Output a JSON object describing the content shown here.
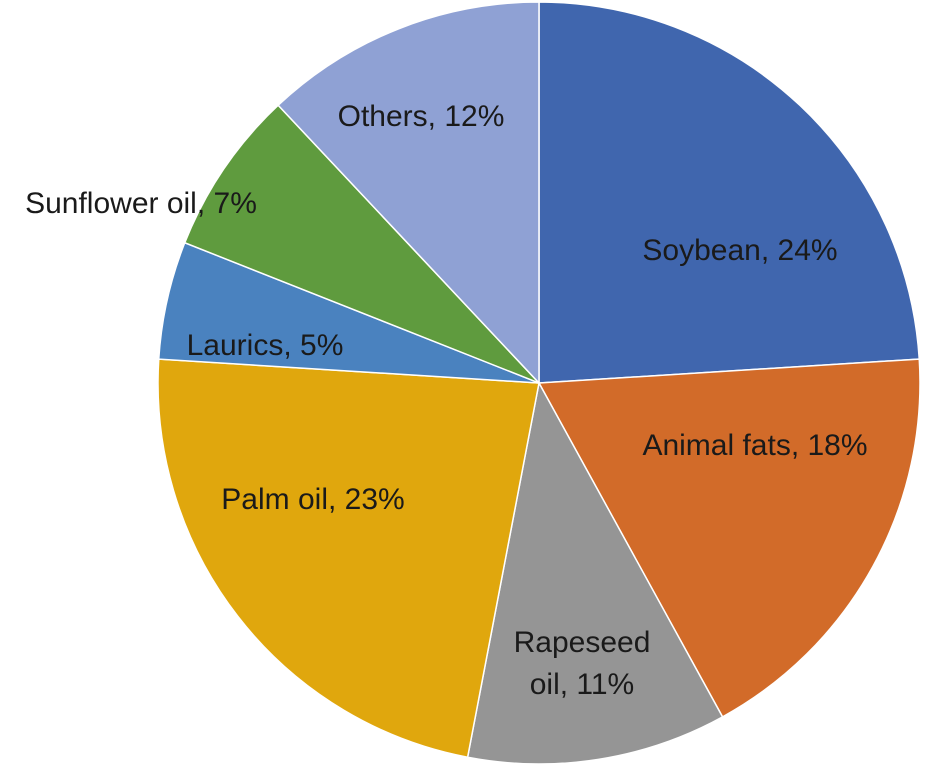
{
  "chart_data": {
    "type": "pie",
    "title": "",
    "slices": [
      {
        "label": "Soybean, 24%",
        "value": 24,
        "color": "#4066ae"
      },
      {
        "label": "Animal fats, 18%",
        "value": 18,
        "color": "#d26b29"
      },
      {
        "label": "Rapeseed oil, 11%",
        "value": 11,
        "color": "#959595"
      },
      {
        "label": "Palm oil, 23%",
        "value": 23,
        "color": "#e0a70d"
      },
      {
        "label": "Laurics, 5%",
        "value": 5,
        "color": "#4a82bf"
      },
      {
        "label": "Sunflower oil, 7%",
        "value": 7,
        "color": "#5f9b3e"
      },
      {
        "label": "Others, 12%",
        "value": 12,
        "color": "#8fa1d4"
      }
    ],
    "start_angle": "12 o'clock",
    "direction": "clockwise",
    "legend": "none",
    "data_labels": "inside slices"
  }
}
